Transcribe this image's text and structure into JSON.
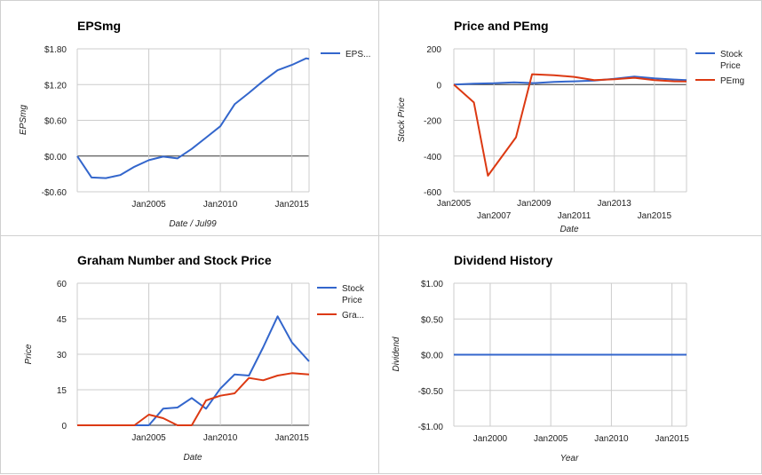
{
  "chart_data": [
    {
      "type": "line",
      "title": "EPSmg",
      "xlabel": "Date / Jul99",
      "ylabel": "EPSmg",
      "x_tick_labels": [
        "Jan2005",
        "Jan2010",
        "Jan2015"
      ],
      "x_ticks": [
        2005,
        2010,
        2015
      ],
      "y_tick_labels": [
        "$1.80",
        "$1.20",
        "$0.60",
        "$0.00",
        "-$0.60"
      ],
      "y_ticks": [
        1.8,
        1.2,
        0.6,
        0.0,
        -0.6
      ],
      "xlim": [
        2000,
        2016.2
      ],
      "ylim": [
        -0.6,
        1.8
      ],
      "grid": true,
      "legend_position": "right",
      "series": [
        {
          "name": "EPS...",
          "color": "#3366cc",
          "x": [
            2000,
            2001,
            2002,
            2003,
            2004,
            2005,
            2006,
            2007,
            2008,
            2009,
            2010,
            2011,
            2012,
            2013,
            2014,
            2015,
            2016,
            2016.2
          ],
          "y": [
            0.0,
            -0.36,
            -0.37,
            -0.32,
            -0.18,
            -0.07,
            -0.01,
            -0.04,
            0.12,
            0.31,
            0.5,
            0.87,
            1.06,
            1.26,
            1.44,
            1.53,
            1.64,
            1.63
          ]
        }
      ]
    },
    {
      "type": "line",
      "title": "Price and PEmg",
      "xlabel": "Date",
      "ylabel": "Stock Price",
      "x_tick_labels": [
        "Jan2005",
        "Jan2007",
        "Jan2009",
        "Jan2011",
        "Jan2013",
        "Jan2015"
      ],
      "x_ticks": [
        2005,
        2007,
        2009,
        2011,
        2013,
        2015
      ],
      "y_tick_labels": [
        "200",
        "0",
        "-200",
        "-400",
        "-600"
      ],
      "y_ticks": [
        200,
        0,
        -200,
        -400,
        -600
      ],
      "xlim": [
        2005,
        2016.6
      ],
      "ylim": [
        -600,
        200
      ],
      "grid": true,
      "legend_position": "right",
      "series": [
        {
          "name": "Stock Price",
          "color": "#3366cc",
          "x": [
            2005,
            2006,
            2007,
            2008,
            2009,
            2010,
            2011,
            2012,
            2013,
            2014,
            2015,
            2016,
            2016.6
          ],
          "y": [
            0,
            5,
            7,
            12,
            8,
            15,
            18,
            22,
            32,
            45,
            35,
            28,
            25
          ]
        },
        {
          "name": "PEmg",
          "color": "#dc3912",
          "x": [
            2005,
            2006,
            2006.7,
            2008.1,
            2008.9,
            2010,
            2011,
            2012,
            2013,
            2014,
            2015,
            2016,
            2016.6
          ],
          "y": [
            0,
            -100,
            -510,
            -295,
            58,
            52,
            43,
            25,
            30,
            38,
            25,
            18,
            17
          ]
        }
      ]
    },
    {
      "type": "line",
      "title": "Graham Number and Stock Price",
      "xlabel": "Date",
      "ylabel": "Price",
      "x_tick_labels": [
        "Jan2005",
        "Jan2010",
        "Jan2015"
      ],
      "x_ticks": [
        2005,
        2010,
        2015
      ],
      "y_tick_labels": [
        "60",
        "45",
        "30",
        "15",
        "0"
      ],
      "y_ticks": [
        60,
        45,
        30,
        15,
        0
      ],
      "xlim": [
        2000,
        2016.2
      ],
      "ylim": [
        0,
        60
      ],
      "grid": true,
      "legend_position": "right",
      "series": [
        {
          "name": "Stock Price",
          "color": "#3366cc",
          "x": [
            2000,
            2001,
            2002,
            2003,
            2004,
            2005,
            2006,
            2007,
            2008,
            2009,
            2010,
            2011,
            2012,
            2013,
            2014,
            2015,
            2016.2
          ],
          "y": [
            0,
            0,
            0,
            0,
            0,
            0,
            7,
            7.5,
            11.5,
            7,
            15.5,
            21.5,
            21,
            33,
            46,
            35,
            27
          ]
        },
        {
          "name": "Gra...",
          "color": "#dc3912",
          "x": [
            2000,
            2001,
            2002,
            2003,
            2004,
            2005,
            2006,
            2007,
            2008,
            2009,
            2010,
            2011,
            2012,
            2013,
            2014,
            2015,
            2016.2
          ],
          "y": [
            0,
            0,
            0,
            0,
            0,
            4.5,
            3,
            0,
            0,
            10.5,
            12.5,
            13.5,
            20,
            19,
            21,
            22,
            21.5
          ]
        }
      ]
    },
    {
      "type": "line",
      "title": "Dividend History",
      "xlabel": "Year",
      "ylabel": "Dividend",
      "x_tick_labels": [
        "Jan2000",
        "Jan2005",
        "Jan2010",
        "Jan2015"
      ],
      "x_ticks": [
        2000,
        2005,
        2010,
        2015
      ],
      "y_tick_labels": [
        "$1.00",
        "$0.50",
        "$0.00",
        "-$0.50",
        "-$1.00"
      ],
      "y_ticks": [
        1.0,
        0.5,
        0.0,
        -0.5,
        -1.0
      ],
      "xlim": [
        1997,
        2016.2
      ],
      "ylim": [
        -1.0,
        1.0
      ],
      "grid": true,
      "legend_position": "none",
      "series": [
        {
          "color": "#3366cc",
          "x": [
            1997,
            2016.2
          ],
          "y": [
            0,
            0
          ]
        }
      ]
    }
  ]
}
